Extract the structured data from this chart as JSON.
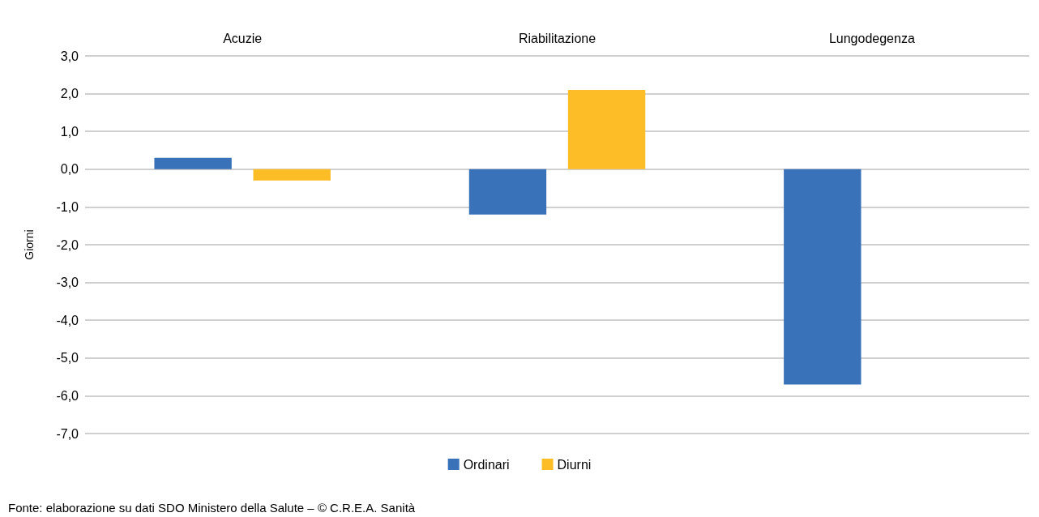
{
  "chart_data": {
    "type": "bar",
    "categories": [
      "Acuzie",
      "Riabilitazione",
      "Lungodegenza"
    ],
    "series": [
      {
        "name": "Ordinari",
        "color": "#3a72b9",
        "values": [
          0.3,
          -1.2,
          -5.7
        ]
      },
      {
        "name": "Diurni",
        "color": "#fdbd27",
        "values": [
          -0.3,
          2.1,
          null
        ]
      }
    ],
    "ylabel": "Giorni",
    "ylim": [
      -7,
      3
    ],
    "yticks": [
      {
        "value": -7,
        "label": "-7,0"
      },
      {
        "value": -6,
        "label": "-6,0"
      },
      {
        "value": -5,
        "label": "-5,0"
      },
      {
        "value": -4,
        "label": "-4,0"
      },
      {
        "value": -3,
        "label": "-3,0"
      },
      {
        "value": -2,
        "label": "-2,0"
      },
      {
        "value": -1,
        "label": "-1,0"
      },
      {
        "value": 0,
        "label": "0,0"
      },
      {
        "value": 1,
        "label": "1,0"
      },
      {
        "value": 2,
        "label": "2,0"
      },
      {
        "value": 3,
        "label": "3,0"
      }
    ],
    "grid": "y",
    "legend": "bottom",
    "annotations": [
      "Fonte: elaborazione su dati SDO Ministero della Salute – © C.R.E.A. Sanità"
    ]
  }
}
